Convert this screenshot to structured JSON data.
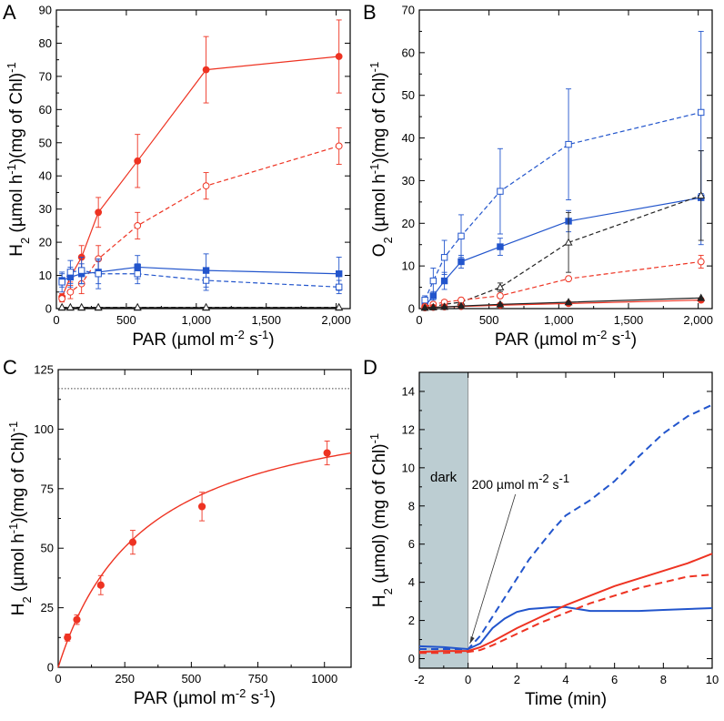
{
  "chart_data": [
    {
      "panel": "A",
      "type": "line",
      "ylabel": "H2 (µmol h-1)(mg of Chl)-1",
      "ylabel_parts": {
        "base": "H",
        "sub1": "2",
        "mid": " (µmol h",
        "sup1": "-1",
        "tail": ")(mg of Chl)",
        "sup2": "-1"
      },
      "xlabel": "PAR (µmol m-2 s-1)",
      "xlabel_parts": {
        "base": "PAR (µmol m",
        "sup1": "-2",
        "mid": " s",
        "sup2": "-1",
        "tail": ")"
      },
      "xlim": [
        0,
        2100
      ],
      "ylim": [
        0,
        90
      ],
      "xticks": [
        0,
        500,
        1000,
        1500,
        2000
      ],
      "xtick_labels": [
        "0",
        "500",
        "1,000",
        "1,500",
        "2,000"
      ],
      "yticks": [
        0,
        10,
        20,
        30,
        40,
        50,
        60,
        70,
        80,
        90
      ],
      "ytick_labels": [
        "0",
        "10",
        "20",
        "30",
        "40",
        "50",
        "60",
        "70",
        "80",
        "90"
      ],
      "series": [
        {
          "name": "red filled",
          "color": "#ee3322",
          "dash": false,
          "marker": "circle",
          "filled": true,
          "x": [
            40,
            100,
            180,
            300,
            580,
            1070,
            2020
          ],
          "y": [
            3.5,
            9.5,
            15.5,
            29,
            44.5,
            72,
            76
          ],
          "err": [
            1,
            1.5,
            3.5,
            4.5,
            8,
            10,
            11
          ]
        },
        {
          "name": "red open",
          "color": "#ee3322",
          "dash": true,
          "marker": "circle",
          "filled": false,
          "x": [
            40,
            100,
            180,
            300,
            580,
            1070,
            2020
          ],
          "y": [
            3,
            5,
            7.5,
            15,
            25,
            37,
            49
          ],
          "err": [
            1,
            2,
            3,
            4,
            4,
            4,
            5.5
          ]
        },
        {
          "name": "blue filled",
          "color": "#2255cc",
          "dash": false,
          "marker": "square",
          "filled": true,
          "x": [
            40,
            100,
            180,
            300,
            580,
            1070,
            2020
          ],
          "y": [
            8.5,
            9.5,
            10.5,
            11,
            12.5,
            11.5,
            10.5
          ],
          "err": [
            2,
            3,
            3,
            3.5,
            3.5,
            5,
            5
          ]
        },
        {
          "name": "blue open",
          "color": "#2255cc",
          "dash": true,
          "marker": "square",
          "filled": false,
          "x": [
            40,
            100,
            180,
            300,
            580,
            1070,
            2020
          ],
          "y": [
            8,
            11,
            11.5,
            10.5,
            10.5,
            8.5,
            6.5
          ],
          "err": [
            3,
            3.5,
            4,
            4.5,
            3,
            3,
            2
          ]
        },
        {
          "name": "black filled",
          "color": "#222222",
          "dash": false,
          "marker": "triangle",
          "filled": true,
          "x": [
            40,
            100,
            180,
            300,
            580,
            1070,
            2020
          ],
          "y": [
            0.3,
            0.3,
            0.3,
            0.3,
            0.3,
            0.3,
            0.3
          ],
          "err": [
            0,
            0,
            0,
            0,
            0,
            0,
            0
          ]
        },
        {
          "name": "black open",
          "color": "#222222",
          "dash": true,
          "marker": "triangle",
          "filled": false,
          "x": [
            40,
            100,
            180,
            300,
            580,
            1070,
            2020
          ],
          "y": [
            0.4,
            0.4,
            0.4,
            0.4,
            0.4,
            0.4,
            0.4
          ],
          "err": [
            0,
            0,
            0,
            0,
            0,
            0,
            0
          ]
        }
      ]
    },
    {
      "panel": "B",
      "type": "line",
      "ylabel": "O2 (µmol h-1)(mg of Chl)-1",
      "ylabel_parts": {
        "base": "O",
        "sub1": "2",
        "mid": " (µmol h",
        "sup1": "-1",
        "tail": ")(mg of Chl)",
        "sup2": "-1"
      },
      "xlabel": "PAR (µmol m-2 s-1)",
      "xlabel_parts": {
        "base": "PAR (µmol m",
        "sup1": "-2",
        "mid": " s",
        "sup2": "-1",
        "tail": ")"
      },
      "xlim": [
        0,
        2100
      ],
      "ylim": [
        0,
        70
      ],
      "xticks": [
        0,
        500,
        1000,
        1500,
        2000
      ],
      "xtick_labels": [
        "0",
        "500",
        "1,000",
        "1,500",
        "2,000"
      ],
      "yticks": [
        0,
        10,
        20,
        30,
        40,
        50,
        60,
        70
      ],
      "ytick_labels": [
        "0",
        "10",
        "20",
        "30",
        "40",
        "50",
        "60",
        "70"
      ],
      "series": [
        {
          "name": "blue open",
          "color": "#2255cc",
          "dash": true,
          "marker": "square",
          "filled": false,
          "x": [
            40,
            100,
            180,
            300,
            580,
            1070,
            2020
          ],
          "y": [
            2,
            6.5,
            12,
            17,
            27.5,
            38.5,
            46
          ],
          "err": [
            1,
            3,
            4,
            5,
            10,
            13,
            19
          ]
        },
        {
          "name": "blue filled",
          "color": "#2255cc",
          "dash": false,
          "marker": "square",
          "filled": true,
          "x": [
            40,
            100,
            180,
            300,
            580,
            1070,
            2020
          ],
          "y": [
            0.5,
            3,
            6.5,
            11,
            14.5,
            20.5,
            26
          ],
          "err": [
            0.5,
            1,
            2,
            1.5,
            2,
            2.5,
            11
          ]
        },
        {
          "name": "black open",
          "color": "#222222",
          "dash": true,
          "marker": "triangle",
          "filled": false,
          "x": [
            40,
            100,
            180,
            300,
            580,
            1070,
            2020
          ],
          "y": [
            0.3,
            0.5,
            1,
            1.5,
            5,
            15.5,
            26.5
          ],
          "err": [
            0,
            0,
            0.5,
            0.5,
            1,
            7,
            10.5
          ]
        },
        {
          "name": "red open",
          "color": "#ee3322",
          "dash": true,
          "marker": "circle",
          "filled": false,
          "x": [
            40,
            100,
            180,
            300,
            580,
            1070,
            2020
          ],
          "y": [
            0.5,
            1,
            1.5,
            2,
            3,
            7,
            11
          ],
          "err": [
            0.3,
            0.5,
            0.5,
            0.5,
            0.5,
            0.5,
            1.5
          ]
        },
        {
          "name": "red filled",
          "color": "#ee3322",
          "dash": false,
          "marker": "circle",
          "filled": true,
          "x": [
            40,
            100,
            180,
            300,
            580,
            1070,
            2020
          ],
          "y": [
            0.2,
            0.3,
            0.4,
            0.5,
            0.8,
            1.2,
            2
          ],
          "err": [
            0,
            0,
            0,
            0,
            0,
            0,
            0.5
          ]
        },
        {
          "name": "black filled",
          "color": "#222222",
          "dash": false,
          "marker": "triangle",
          "filled": true,
          "x": [
            40,
            100,
            180,
            300,
            580,
            1070,
            2020
          ],
          "y": [
            0.2,
            0.3,
            0.4,
            0.6,
            1,
            1.5,
            2.5
          ],
          "err": [
            0,
            0,
            0,
            0,
            0,
            0,
            0
          ]
        }
      ]
    },
    {
      "panel": "C",
      "type": "scatter",
      "ylabel": "H2 (µmol h-1)(mg of Chl)-1",
      "ylabel_parts": {
        "base": "H",
        "sub1": "2",
        "mid": " (µmol h",
        "sup1": "-1",
        "tail": ")(mg of Chl)",
        "sup2": "-1"
      },
      "xlabel": "PAR (µmol m-2 s-1)",
      "xlabel_parts": {
        "base": "PAR (µmol m",
        "sup1": "-2",
        "mid": " s",
        "sup2": "-1",
        "tail": ")"
      },
      "xlim": [
        0,
        1100
      ],
      "ylim": [
        0,
        125
      ],
      "xticks": [
        0,
        250,
        500,
        750,
        1000
      ],
      "xtick_labels": [
        "0",
        "250",
        "500",
        "750",
        "1000"
      ],
      "yticks": [
        0,
        25,
        50,
        75,
        100,
        125
      ],
      "ytick_labels": [
        "0",
        "25",
        "50",
        "75",
        "100",
        "125"
      ],
      "points": {
        "color": "#ee3322",
        "x": [
          35,
          70,
          160,
          280,
          540,
          1010
        ],
        "y": [
          12.5,
          20,
          34.5,
          52.5,
          67.5,
          90
        ],
        "err": [
          1.5,
          2,
          4,
          5,
          6,
          5
        ]
      },
      "fit": {
        "type": "michaelis-menten",
        "vmax": 117,
        "km": 330,
        "color": "#ee3322"
      },
      "asymptote": 117
    },
    {
      "panel": "D",
      "type": "line",
      "ylabel": "H2 (µmol) (mg of Chl)-1",
      "ylabel_parts": {
        "base": "H",
        "sub1": "2",
        "mid": " (µmol) (mg of Chl)",
        "sup1": "-1"
      },
      "xlabel": "Time (min)",
      "xlim": [
        -2,
        10
      ],
      "ylim": [
        -0.5,
        15
      ],
      "xticks": [
        -2,
        0,
        2,
        4,
        6,
        8,
        10
      ],
      "xtick_labels": [
        "-2",
        "0",
        "2",
        "4",
        "6",
        "8",
        "10"
      ],
      "yticks": [
        0,
        2,
        4,
        6,
        8,
        10,
        12,
        14
      ],
      "ytick_labels": [
        "0",
        "2",
        "4",
        "6",
        "8",
        "10",
        "12",
        "14"
      ],
      "dark_region": [
        -2,
        0
      ],
      "dark_label": "dark",
      "annotation": {
        "text": "200 µmol m-2 s-1",
        "base": "200 µmol m",
        "sup1": "-2",
        "mid": " s",
        "sup2": "-1",
        "target_x": 0,
        "target_y": 0.5
      },
      "series": [
        {
          "name": "blue dashed",
          "color": "#2255cc",
          "dash": true,
          "x": [
            -2,
            -1,
            0,
            0.5,
            1,
            1.5,
            2,
            2.5,
            3,
            3.5,
            4,
            5,
            6,
            7,
            8,
            9,
            10
          ],
          "y": [
            0.5,
            0.5,
            0.5,
            1.2,
            2.2,
            3.2,
            4.2,
            5.2,
            6.0,
            6.8,
            7.5,
            8.3,
            9.3,
            10.6,
            11.8,
            12.7,
            13.3
          ]
        },
        {
          "name": "blue solid",
          "color": "#2255cc",
          "dash": false,
          "x": [
            -2,
            -1,
            0,
            0.5,
            1,
            1.5,
            2,
            2.5,
            3,
            3.5,
            4,
            5,
            6,
            7,
            8,
            9,
            10
          ],
          "y": [
            0.65,
            0.6,
            0.5,
            0.8,
            1.6,
            2.1,
            2.45,
            2.6,
            2.65,
            2.7,
            2.7,
            2.5,
            2.5,
            2.5,
            2.55,
            2.6,
            2.65
          ]
        },
        {
          "name": "red solid",
          "color": "#ee3322",
          "dash": false,
          "x": [
            -2,
            -1,
            0,
            0.5,
            1,
            2,
            3,
            4,
            5,
            6,
            7,
            8,
            9,
            10
          ],
          "y": [
            0.35,
            0.4,
            0.4,
            0.6,
            0.9,
            1.6,
            2.2,
            2.8,
            3.3,
            3.8,
            4.2,
            4.6,
            5.0,
            5.5
          ]
        },
        {
          "name": "red dashed",
          "color": "#ee3322",
          "dash": true,
          "x": [
            -2,
            -1,
            0,
            0.5,
            1,
            2,
            3,
            4,
            5,
            6,
            7,
            8,
            9,
            10
          ],
          "y": [
            0.3,
            0.3,
            0.35,
            0.45,
            0.7,
            1.3,
            1.9,
            2.4,
            2.9,
            3.3,
            3.7,
            4.0,
            4.3,
            4.4
          ]
        }
      ]
    }
  ],
  "panel_labels": [
    "A",
    "B",
    "C",
    "D"
  ]
}
